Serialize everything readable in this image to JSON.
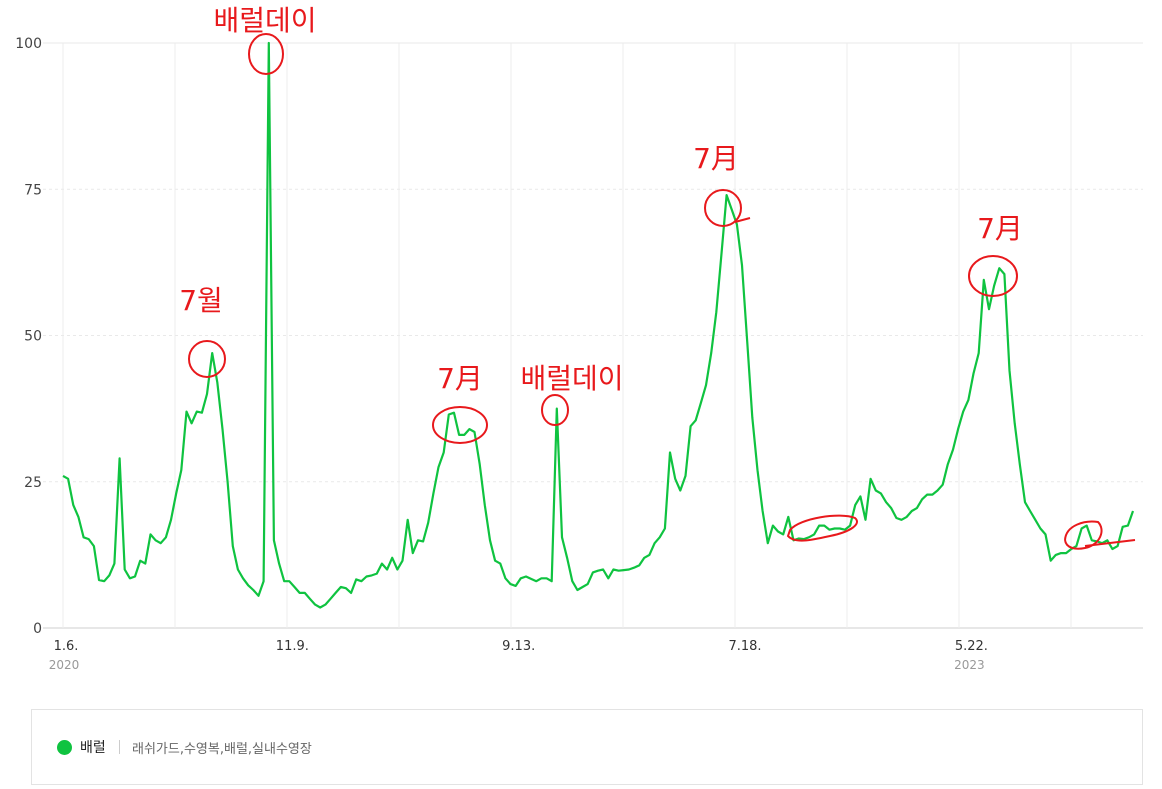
{
  "chart_data": {
    "type": "line",
    "yticks": [
      "0",
      "25",
      "50",
      "75",
      "100"
    ],
    "ylim": [
      0,
      100
    ],
    "grid": true,
    "xticks": [
      {
        "label": "1.6.",
        "year": "2020",
        "index": 0
      },
      {
        "label": "11.9.",
        "year": "",
        "index": 44
      },
      {
        "label": "9.13.",
        "year": "",
        "index": 88
      },
      {
        "label": "7.18.",
        "year": "",
        "index": 132
      },
      {
        "label": "5.22.",
        "year": "2023",
        "index": 176
      }
    ],
    "series": [
      {
        "name": "배럴",
        "color": "#0fc340",
        "values": [
          26,
          25.5,
          21,
          19,
          15.5,
          15.2,
          14,
          8.2,
          8,
          9,
          11,
          29,
          10,
          8.5,
          8.8,
          11.5,
          11,
          16,
          15,
          14.5,
          15.5,
          18.5,
          23,
          27,
          37,
          35,
          37,
          36.8,
          40,
          47,
          42,
          34,
          25,
          14,
          10,
          8.5,
          7.3,
          6.5,
          5.5,
          8,
          100,
          15,
          11,
          8,
          8,
          7,
          6,
          6,
          5,
          4,
          3.5,
          4,
          5,
          6,
          7,
          6.8,
          6,
          8.3,
          8,
          8.8,
          9,
          9.3,
          11,
          10,
          12,
          10,
          11.5,
          18.5,
          12.8,
          15,
          14.8,
          18,
          23,
          27.5,
          30,
          36.5,
          36.8,
          33,
          33,
          34,
          33.5,
          28,
          21,
          15,
          11.5,
          11,
          8.5,
          7.5,
          7.2,
          8.5,
          8.8,
          8.4,
          8,
          8.5,
          8.5,
          8,
          37.5,
          15.5,
          12,
          8,
          6.5,
          7,
          7.5,
          9.5,
          9.8,
          10,
          8.5,
          10,
          9.8,
          9.9,
          10,
          10.3,
          10.7,
          12,
          12.5,
          14.5,
          15.5,
          17,
          30,
          25.5,
          23.5,
          26,
          34.5,
          35.5,
          38.5,
          41.5,
          47,
          54,
          64,
          74,
          71.5,
          69,
          62,
          49,
          36,
          27,
          20,
          14.5,
          17.5,
          16.5,
          16,
          19,
          15,
          15.3,
          15.2,
          15.5,
          16,
          17.5,
          17.5,
          16.8,
          17,
          17,
          16.8,
          17.5,
          21,
          22.5,
          18.5,
          25.5,
          23.5,
          23,
          21.5,
          20.5,
          18.8,
          18.5,
          19,
          20,
          20.5,
          22,
          22.8,
          22.8,
          23.5,
          24.5,
          28,
          30.5,
          34,
          37,
          39,
          43.5,
          47,
          59.5,
          54.5,
          58.5,
          61.5,
          60.5,
          44,
          35,
          28,
          21.5,
          20,
          18.5,
          17,
          16,
          11.5,
          12.5,
          12.8,
          12.8,
          13.5,
          14,
          17,
          17.5,
          15,
          14.8,
          14.5,
          15,
          13.5,
          14,
          17.3,
          17.5,
          20
        ]
      }
    ],
    "annotations": [
      "배럴데이",
      "7월",
      "7月",
      "배럴데이",
      "7月",
      "7月"
    ]
  },
  "legend": {
    "series_name": "배럴",
    "keywords": "래쉬가드,수영복,배럴,실내수영장"
  }
}
